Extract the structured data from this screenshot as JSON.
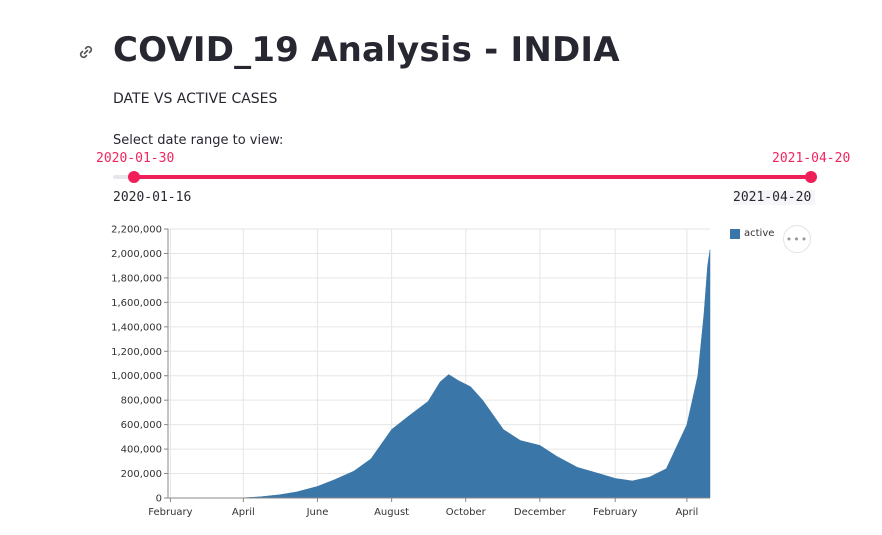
{
  "header": {
    "title": "COVID_19 Analysis - INDIA",
    "subtitle": "DATE VS ACTIVE CASES",
    "anchor_icon": "link-icon"
  },
  "slider": {
    "label": "Select date range to view:",
    "selected_start": "2020-01-30",
    "selected_end": "2021-04-20",
    "min": "2020-01-16",
    "max": "2021-04-20",
    "accent_color": "#ef1f5a"
  },
  "chart_menu": {
    "label": "•••",
    "icon": "more-options-icon"
  },
  "chart_data": {
    "type": "area",
    "x_start": "2020-01-30",
    "x_end": "2021-04-20",
    "ylim": [
      0,
      2200000
    ],
    "yticks": [
      0,
      200000,
      400000,
      600000,
      800000,
      1000000,
      1200000,
      1400000,
      1600000,
      1800000,
      2000000,
      2200000
    ],
    "ytick_labels": [
      "0",
      "200,000",
      "400,000",
      "600,000",
      "800,000",
      "1,000,000",
      "1,200,000",
      "1,400,000",
      "1,600,000",
      "1,800,000",
      "2,000,000",
      "2,200,000"
    ],
    "xticks": [
      {
        "date": "2020-02-01",
        "label": "February"
      },
      {
        "date": "2020-04-01",
        "label": "April"
      },
      {
        "date": "2020-06-01",
        "label": "June"
      },
      {
        "date": "2020-08-01",
        "label": "August"
      },
      {
        "date": "2020-10-01",
        "label": "October"
      },
      {
        "date": "2020-12-01",
        "label": "December"
      },
      {
        "date": "2021-02-01",
        "label": "February"
      },
      {
        "date": "2021-04-01",
        "label": "April"
      }
    ],
    "grid": true,
    "legend_position": "top-right",
    "series": [
      {
        "name": "active",
        "color": "#3a77a8",
        "points": [
          {
            "date": "2020-01-30",
            "value": 0
          },
          {
            "date": "2020-03-01",
            "value": 0
          },
          {
            "date": "2020-03-20",
            "value": 300
          },
          {
            "date": "2020-04-01",
            "value": 2000
          },
          {
            "date": "2020-04-15",
            "value": 10000
          },
          {
            "date": "2020-05-01",
            "value": 27000
          },
          {
            "date": "2020-05-15",
            "value": 50000
          },
          {
            "date": "2020-06-01",
            "value": 95000
          },
          {
            "date": "2020-06-15",
            "value": 150000
          },
          {
            "date": "2020-07-01",
            "value": 220000
          },
          {
            "date": "2020-07-15",
            "value": 320000
          },
          {
            "date": "2020-08-01",
            "value": 560000
          },
          {
            "date": "2020-08-15",
            "value": 670000
          },
          {
            "date": "2020-08-31",
            "value": 790000
          },
          {
            "date": "2020-09-10",
            "value": 950000
          },
          {
            "date": "2020-09-17",
            "value": 1010000
          },
          {
            "date": "2020-09-25",
            "value": 960000
          },
          {
            "date": "2020-10-05",
            "value": 910000
          },
          {
            "date": "2020-10-15",
            "value": 800000
          },
          {
            "date": "2020-11-01",
            "value": 560000
          },
          {
            "date": "2020-11-15",
            "value": 470000
          },
          {
            "date": "2020-12-01",
            "value": 430000
          },
          {
            "date": "2020-12-15",
            "value": 340000
          },
          {
            "date": "2021-01-01",
            "value": 250000
          },
          {
            "date": "2021-01-15",
            "value": 210000
          },
          {
            "date": "2021-02-01",
            "value": 160000
          },
          {
            "date": "2021-02-15",
            "value": 140000
          },
          {
            "date": "2021-03-01",
            "value": 170000
          },
          {
            "date": "2021-03-15",
            "value": 240000
          },
          {
            "date": "2021-04-01",
            "value": 600000
          },
          {
            "date": "2021-04-10",
            "value": 1000000
          },
          {
            "date": "2021-04-15",
            "value": 1500000
          },
          {
            "date": "2021-04-18",
            "value": 1900000
          },
          {
            "date": "2021-04-20",
            "value": 2030000
          }
        ]
      }
    ]
  }
}
